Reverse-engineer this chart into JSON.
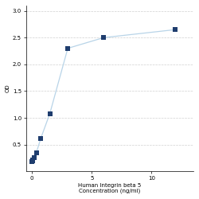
{
  "x": [
    0.0,
    0.047,
    0.094,
    0.188,
    0.375,
    0.75,
    1.5,
    3,
    6,
    12
  ],
  "y": [
    0.175,
    0.19,
    0.21,
    0.25,
    0.35,
    0.62,
    1.08,
    2.3,
    2.5,
    2.65
  ],
  "xlabel_line1": "Human Integrin beta 5",
  "xlabel_line2": "Concentration (ng/ml)",
  "ylabel": "OD",
  "xlim": [
    -0.5,
    13.5
  ],
  "ylim": [
    0.0,
    3.1
  ],
  "yticks": [
    0.5,
    1.0,
    1.5,
    2.0,
    2.5,
    3.0
  ],
  "xticks": [
    0,
    5,
    10
  ],
  "xtick_labels": [
    "0",
    "5",
    "10"
  ],
  "line_color": "#b8d4e8",
  "marker_color": "#1f3d6e",
  "marker_size": 18,
  "line_width": 0.9,
  "grid_color": "#d0d0d0",
  "bg_color": "#ffffff",
  "tick_fontsize": 5,
  "label_fontsize": 5
}
